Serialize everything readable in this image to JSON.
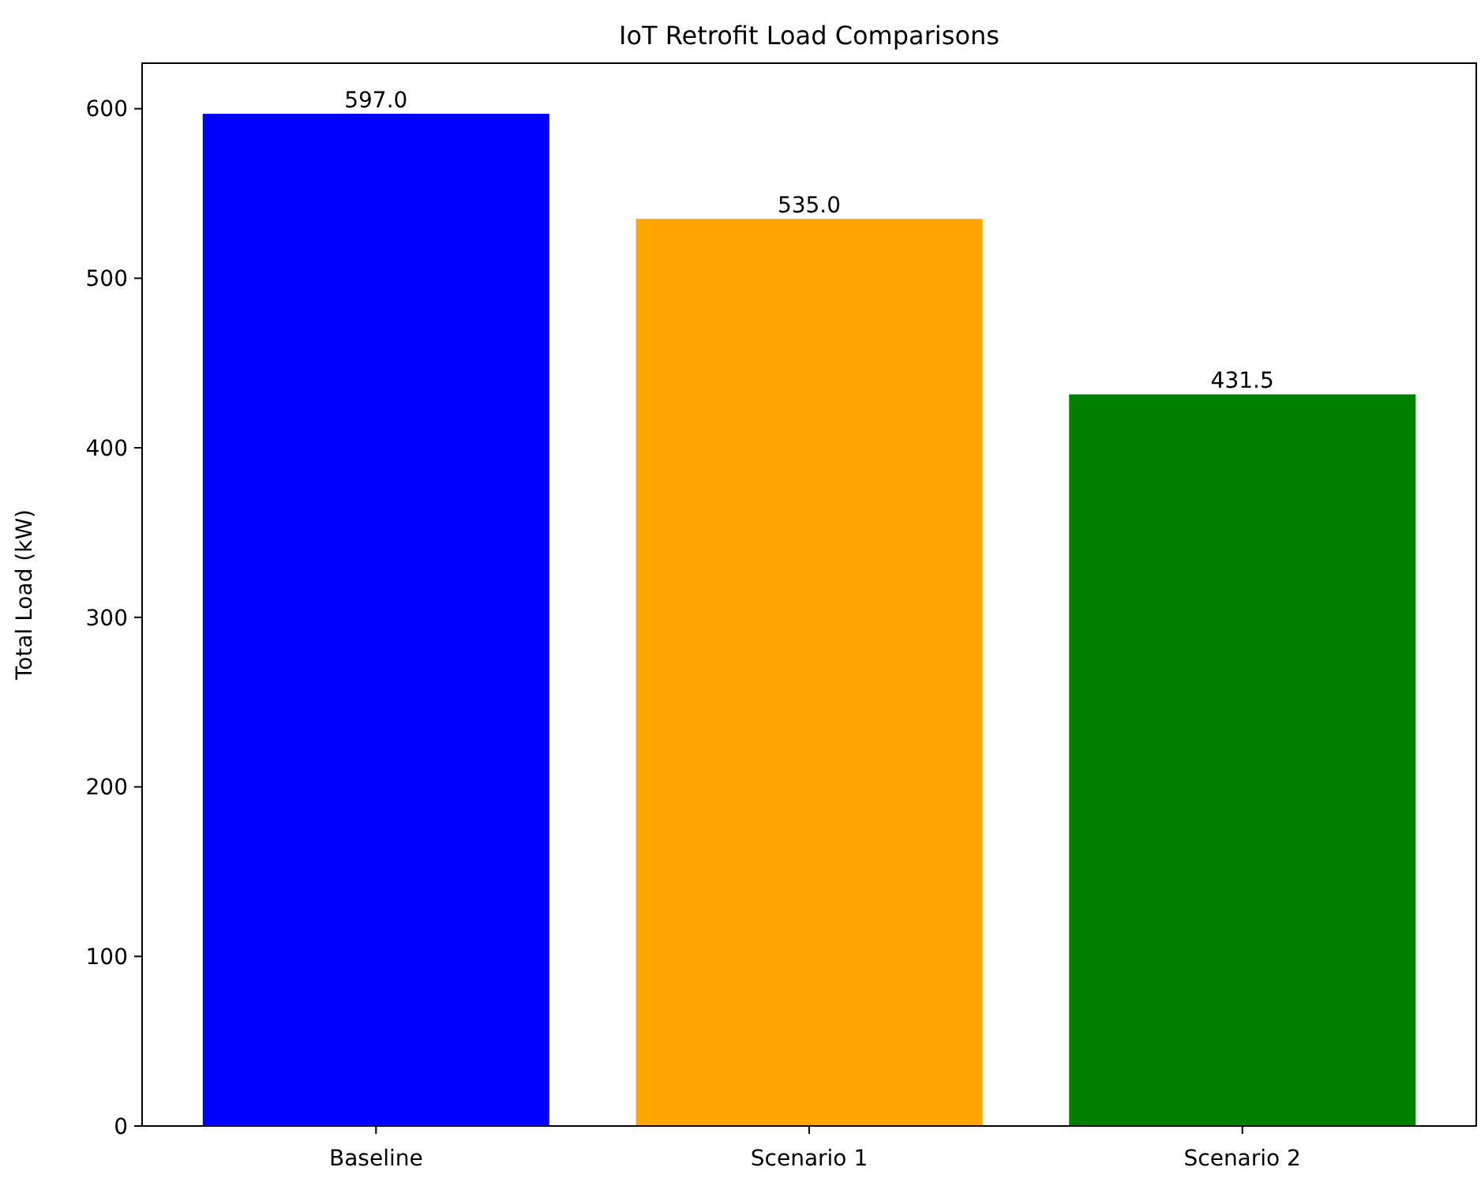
{
  "chart_data": {
    "type": "bar",
    "title": "IoT Retrofit Load Comparisons",
    "ylabel": "Total Load (kW)",
    "categories": [
      "Baseline",
      "Scenario 1",
      "Scenario 2"
    ],
    "values": [
      597.0,
      535.0,
      431.5
    ],
    "colors": [
      "#0000ff",
      "#ffa500",
      "#008000"
    ],
    "value_labels": [
      "597.0",
      "535.0",
      "431.5"
    ],
    "ylim": [
      0,
      626.85
    ],
    "yticks": [
      0,
      100,
      200,
      300,
      400,
      500,
      600
    ],
    "grid": false
  }
}
